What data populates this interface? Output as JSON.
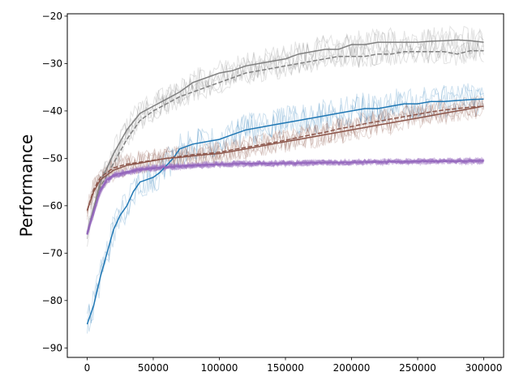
{
  "chart_data": {
    "type": "line",
    "title": "",
    "xlabel": "",
    "ylabel": "Performance",
    "xlim": [
      -15000,
      315000
    ],
    "ylim": [
      -92,
      -19.5
    ],
    "xticks": [
      0,
      50000,
      100000,
      150000,
      200000,
      250000,
      300000
    ],
    "xtick_labels": [
      "0",
      "50000",
      "100000",
      "150000",
      "200000",
      "250000",
      "300000"
    ],
    "yticks": [
      -90,
      -80,
      -70,
      -60,
      -50,
      -40,
      -30,
      -20
    ],
    "ytick_labels": [
      "−90",
      "−80",
      "−70",
      "−60",
      "−50",
      "−40",
      "−30",
      "−20"
    ],
    "grid": false,
    "legend": "none",
    "series": [
      {
        "color": "#7f7f7f",
        "linestyle": "solid",
        "band_spread": 3.0,
        "x": [
          0,
          10000,
          20000,
          30000,
          40000,
          50000,
          60000,
          70000,
          80000,
          90000,
          100000,
          110000,
          120000,
          130000,
          140000,
          150000,
          160000,
          170000,
          180000,
          190000,
          200000,
          210000,
          220000,
          230000,
          240000,
          250000,
          260000,
          270000,
          280000,
          290000,
          300000
        ],
        "y": [
          -66,
          -55,
          -49,
          -44,
          -40.5,
          -39,
          -37.5,
          -36,
          -34,
          -33,
          -32,
          -31.5,
          -30.5,
          -30,
          -29.5,
          -29,
          -28,
          -27.5,
          -27,
          -27,
          -26,
          -26,
          -25.5,
          -25.5,
          -25.5,
          -25.5,
          -25.3,
          -25.2,
          -25,
          -25.2,
          -25.5
        ]
      },
      {
        "color": "#7f7f7f",
        "linestyle": "dashed",
        "band_spread": 2.5,
        "x": [
          0,
          10000,
          20000,
          30000,
          40000,
          50000,
          60000,
          70000,
          80000,
          90000,
          100000,
          110000,
          120000,
          130000,
          140000,
          150000,
          160000,
          170000,
          180000,
          190000,
          200000,
          210000,
          220000,
          230000,
          240000,
          250000,
          260000,
          270000,
          280000,
          290000,
          300000
        ],
        "y": [
          -66,
          -56,
          -51,
          -46,
          -42,
          -40,
          -38.5,
          -37,
          -36,
          -35,
          -34,
          -33,
          -32,
          -31.5,
          -31,
          -30.5,
          -30,
          -29.5,
          -29,
          -28.5,
          -28.5,
          -28.5,
          -28,
          -28,
          -27.5,
          -27.5,
          -27.5,
          -27.5,
          -28,
          -27.3,
          -27.3
        ]
      },
      {
        "color": "#1f77b4",
        "linestyle": "solid",
        "band_spread": 3.5,
        "x": [
          0,
          5000,
          10000,
          15000,
          20000,
          25000,
          30000,
          35000,
          40000,
          50000,
          55000,
          60000,
          65000,
          70000,
          80000,
          90000,
          100000,
          110000,
          120000,
          130000,
          140000,
          150000,
          160000,
          170000,
          180000,
          190000,
          200000,
          210000,
          220000,
          230000,
          240000,
          250000,
          260000,
          270000,
          280000,
          290000,
          300000
        ],
        "y": [
          -85,
          -81,
          -75,
          -70,
          -65,
          -62,
          -60,
          -57,
          -55,
          -54,
          -53,
          -51.5,
          -50,
          -48,
          -47,
          -46.5,
          -46,
          -45,
          -44,
          -43.5,
          -43,
          -42.5,
          -42,
          -41.5,
          -41,
          -40.5,
          -40,
          -39.5,
          -39.5,
          -39,
          -38.5,
          -38.5,
          -38,
          -38,
          -37.8,
          -37.6,
          -37.5
        ]
      },
      {
        "color": "#8c564b",
        "linestyle": "solid",
        "band_spread": 2.5,
        "x": [
          0,
          5000,
          10000,
          20000,
          30000,
          40000,
          50000,
          60000,
          70000,
          80000,
          90000,
          100000,
          110000,
          120000,
          130000,
          140000,
          150000,
          160000,
          170000,
          180000,
          190000,
          200000,
          210000,
          220000,
          230000,
          240000,
          250000,
          260000,
          270000,
          280000,
          290000,
          300000
        ],
        "y": [
          -61,
          -57,
          -54.5,
          -52.5,
          -51.5,
          -51,
          -50.5,
          -50,
          -49.8,
          -49.5,
          -49.2,
          -49,
          -48.5,
          -48,
          -47.5,
          -47,
          -46.5,
          -46,
          -45.5,
          -45,
          -44.5,
          -44,
          -43.5,
          -43,
          -42.5,
          -42,
          -41.5,
          -41,
          -40.5,
          -40,
          -39.5,
          -39
        ]
      },
      {
        "color": "#8c564b",
        "linestyle": "dashed",
        "band_spread": 2.5,
        "x": [
          0,
          5000,
          10000,
          20000,
          30000,
          40000,
          50000,
          60000,
          70000,
          80000,
          90000,
          100000,
          110000,
          120000,
          130000,
          140000,
          150000,
          160000,
          170000,
          180000,
          190000,
          200000,
          210000,
          220000,
          230000,
          240000,
          250000,
          260000,
          270000,
          280000,
          290000,
          300000
        ],
        "y": [
          -61,
          -56.5,
          -54,
          -52,
          -51.2,
          -50.8,
          -50.4,
          -50,
          -49.6,
          -49.2,
          -49,
          -48.7,
          -48.2,
          -47.7,
          -47.2,
          -46.7,
          -46.2,
          -45.6,
          -45,
          -44.5,
          -43.8,
          -43.3,
          -42.7,
          -42.2,
          -41.7,
          -41.2,
          -40.7,
          -40.2,
          -39.8,
          -39.5,
          -39.2,
          -39
        ]
      },
      {
        "color": "#9467bd",
        "linestyle": "solid",
        "band_spread": 0.5,
        "x": [
          0,
          5000,
          10000,
          15000,
          20000,
          30000,
          40000,
          50000,
          60000,
          70000,
          80000,
          100000,
          120000,
          150000,
          200000,
          250000,
          300000
        ],
        "y": [
          -66,
          -61,
          -56.5,
          -54.5,
          -53.5,
          -52.8,
          -52.3,
          -52,
          -51.8,
          -51.6,
          -51.4,
          -51.2,
          -51.1,
          -51,
          -50.8,
          -50.6,
          -50.5
        ]
      },
      {
        "color": "#9467bd",
        "linestyle": "dashed",
        "band_spread": 0.5,
        "x": [
          0,
          5000,
          10000,
          15000,
          20000,
          30000,
          40000,
          50000,
          60000,
          70000,
          80000,
          100000,
          120000,
          150000,
          200000,
          250000,
          300000
        ],
        "y": [
          -66,
          -61.3,
          -56.8,
          -54.8,
          -53.8,
          -53,
          -52.5,
          -52.2,
          -52,
          -51.8,
          -51.6,
          -51.3,
          -51.2,
          -51.1,
          -50.9,
          -50.7,
          -50.6
        ]
      }
    ]
  }
}
